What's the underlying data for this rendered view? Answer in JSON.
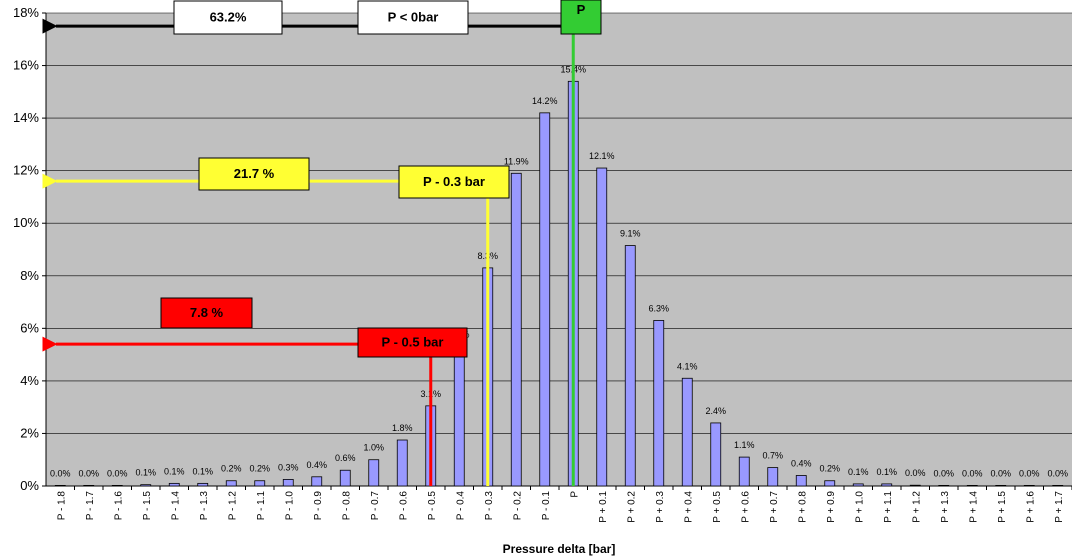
{
  "chart_data": {
    "type": "bar",
    "title": "",
    "xlabel": "Pressure delta [bar]",
    "ylabel": "",
    "ylim": [
      0,
      18
    ],
    "yticks": [
      "0%",
      "2%",
      "4%",
      "6%",
      "8%",
      "10%",
      "12%",
      "14%",
      "16%",
      "18%"
    ],
    "grid": true,
    "categories": [
      "P - 1.8",
      "P - 1.7",
      "P - 1.6",
      "P - 1.5",
      "P - 1.4",
      "P - 1.3",
      "P - 1.2",
      "P - 1.1",
      "P - 1.0",
      "P - 0.9",
      "P - 0.8",
      "P - 0.7",
      "P - 0.6",
      "P - 0.5",
      "P - 0.4",
      "P - 0.3",
      "P - 0.2",
      "P - 0.1",
      "P",
      "P + 0.1",
      "P + 0.2",
      "P + 0.3",
      "P + 0.4",
      "P + 0.5",
      "P + 0.6",
      "P + 0.7",
      "P + 0.8",
      "P + 0.9",
      "P + 1.0",
      "P + 1.1",
      "P + 1.2",
      "P + 1.3",
      "P + 1.4",
      "P + 1.5",
      "P + 1.6",
      "P + 1.7"
    ],
    "values": [
      0.0,
      0.0,
      0.0,
      0.05,
      0.1,
      0.1,
      0.2,
      0.2,
      0.25,
      0.35,
      0.6,
      1.0,
      1.75,
      3.05,
      5.3,
      8.3,
      11.9,
      14.2,
      15.4,
      12.1,
      9.15,
      6.3,
      4.1,
      2.4,
      1.1,
      0.7,
      0.4,
      0.2,
      0.08,
      0.08,
      0.03,
      0.02,
      0.01,
      0.01,
      0.01,
      0.01
    ],
    "data_labels": [
      "0.0%",
      "0.0%",
      "0.0%",
      "0.1%",
      "0.1%",
      "0.1%",
      "0.2%",
      "0.2%",
      "0.3%",
      "0.4%",
      "0.6%",
      "1.0%",
      "1.8%",
      "3.1%",
      "5.3%",
      "8.3%",
      "11.9%",
      "14.2%",
      "15.4%",
      "12.1%",
      "9.1%",
      "6.3%",
      "4.1%",
      "2.4%",
      "1.1%",
      "0.7%",
      "0.4%",
      "0.2%",
      "0.1%",
      "0.1%",
      "0.0%",
      "0.0%",
      "0.0%",
      "0.0%",
      "0.0%",
      "0.0%"
    ],
    "bar_color": "#9999ff",
    "plot_bg": "#c0c0c0",
    "annotations": [
      {
        "text": "63.2%",
        "box_text": "P < 0bar",
        "marker": "P",
        "marker_category": "P",
        "level": 17.5,
        "color": "#000000",
        "marker_color": "#33cc33"
      },
      {
        "text": "21.7 %",
        "box_text": "P - 0.3 bar",
        "marker_category": "P - 0.3",
        "level": 11.6,
        "color": "#ffff33"
      },
      {
        "text": "7.8 %",
        "box_text": "P - 0.5 bar",
        "marker_category": "P - 0.5",
        "level": 5.4,
        "color": "#ff0000"
      }
    ]
  }
}
